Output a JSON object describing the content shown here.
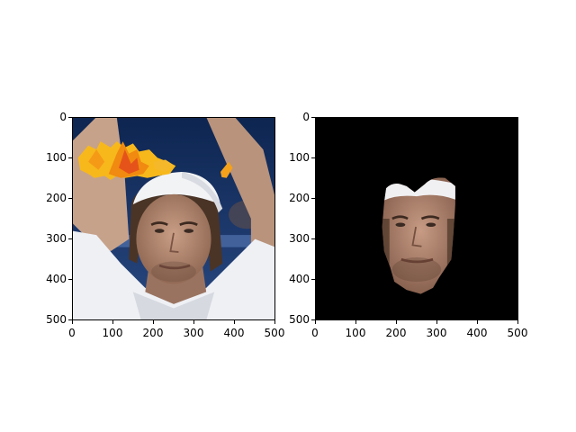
{
  "panels": [
    {
      "id": "panel-left",
      "content": "photo",
      "x_ticks": [
        "0",
        "100",
        "200",
        "300",
        "400",
        "500"
      ],
      "y_ticks": [
        "0",
        "100",
        "200",
        "300",
        "400",
        "500"
      ]
    },
    {
      "id": "panel-right",
      "content": "face-mask-cutout",
      "x_ticks": [
        "0",
        "100",
        "200",
        "300",
        "400",
        "500"
      ],
      "y_ticks": [
        "0",
        "100",
        "200",
        "300",
        "400",
        "500"
      ]
    }
  ],
  "colors": {
    "background": "#ffffff",
    "mask_background": "#000000",
    "leaf_orange": "#f08a10",
    "leaf_yellow": "#f7b81c",
    "skin": "#b08870",
    "sky_blue": "#1d3a70"
  }
}
